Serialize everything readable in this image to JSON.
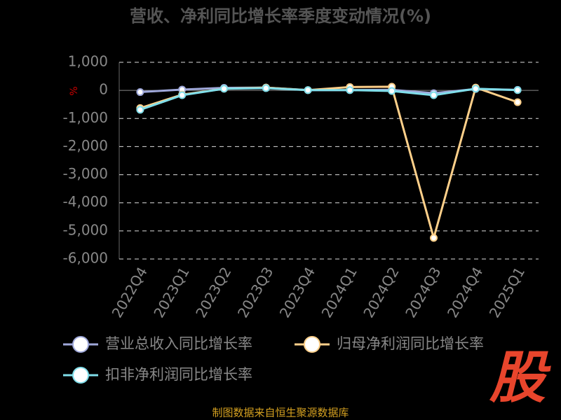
{
  "chart_data": {
    "type": "line",
    "title": "营收、净利同比增长率季度变动情况(%)",
    "y_label": "%",
    "categories": [
      "2022Q4",
      "2023Q1",
      "2023Q2",
      "2023Q3",
      "2023Q4",
      "2024Q1",
      "2024Q2",
      "2024Q3",
      "2024Q4",
      "2025Q1"
    ],
    "series": [
      {
        "name": "营业总收入同比增长率",
        "color": "#9fa8da",
        "values": [
          -60,
          30,
          90,
          100,
          10,
          10,
          20,
          -100,
          50,
          20
        ]
      },
      {
        "name": "归母净利润同比增长率",
        "color": "#ffd08a",
        "values": [
          -630,
          -150,
          60,
          100,
          10,
          120,
          130,
          -5250,
          100,
          -420
        ]
      },
      {
        "name": "扣非净利润同比增长率",
        "color": "#80deea",
        "values": [
          -690,
          -170,
          60,
          80,
          10,
          10,
          -20,
          -170,
          60,
          10
        ]
      }
    ],
    "ylim": [
      -6000,
      1000
    ],
    "yticks": [
      {
        "value": -6000,
        "label": "-6,000"
      },
      {
        "value": -5000,
        "label": "-5,000"
      },
      {
        "value": -4000,
        "label": "-4,000"
      },
      {
        "value": -3000,
        "label": "-3,000"
      },
      {
        "value": -2000,
        "label": "-2,000"
      },
      {
        "value": -1000,
        "label": "-1,000"
      },
      0,
      {
        "value": 1000,
        "label": "1,000"
      }
    ],
    "grid": true,
    "source": "制图数据来自恒生聚源数据库",
    "logo": "股"
  }
}
